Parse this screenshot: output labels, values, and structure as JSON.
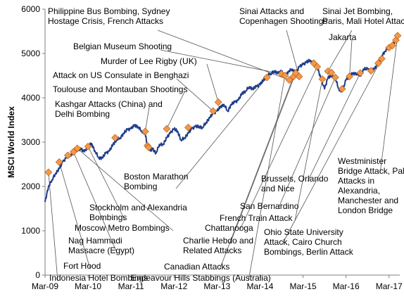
{
  "chart_data": {
    "type": "line",
    "ylabel": "MSCI World Index",
    "xlabel": "",
    "ylim": [
      0,
      6000
    ],
    "yticks": [
      0,
      1000,
      2000,
      3000,
      4000,
      5000,
      6000
    ],
    "xlim": [
      2009.17,
      2017.42
    ],
    "xticks": [
      {
        "label": "Mar-09",
        "x": 2009.17
      },
      {
        "label": "Mar-10",
        "x": 2010.17
      },
      {
        "label": "Mar-11",
        "x": 2011.17
      },
      {
        "label": "Mar-12",
        "x": 2012.17
      },
      {
        "label": "Mar-13",
        "x": 2013.17
      },
      {
        "label": "Mar-14",
        "x": 2014.17
      },
      {
        "label": "Mar-15",
        "x": 2015.17
      },
      {
        "label": "Mar-16",
        "x": 2016.17
      },
      {
        "label": "Mar-17",
        "x": 2017.17
      }
    ],
    "grid": false,
    "colors": {
      "line": "#1f3d8a",
      "marker": "#f79646",
      "marker_edge": "#a65a17",
      "leader": "#555555",
      "axis": "#7f7f7f"
    },
    "series": [
      {
        "values": [
          [
            2009.17,
            1650
          ],
          [
            2009.25,
            2000
          ],
          [
            2009.33,
            2150
          ],
          [
            2009.42,
            2300
          ],
          [
            2009.5,
            2400
          ],
          [
            2009.58,
            2550
          ],
          [
            2009.67,
            2650
          ],
          [
            2009.75,
            2700
          ],
          [
            2009.83,
            2760
          ],
          [
            2009.92,
            2830
          ],
          [
            2010.0,
            2850
          ],
          [
            2010.08,
            2780
          ],
          [
            2010.17,
            2900
          ],
          [
            2010.25,
            2970
          ],
          [
            2010.33,
            2800
          ],
          [
            2010.42,
            2650
          ],
          [
            2010.5,
            2640
          ],
          [
            2010.58,
            2750
          ],
          [
            2010.67,
            2800
          ],
          [
            2010.75,
            2950
          ],
          [
            2010.83,
            3050
          ],
          [
            2010.92,
            3100
          ],
          [
            2011.0,
            3200
          ],
          [
            2011.08,
            3280
          ],
          [
            2011.17,
            3300
          ],
          [
            2011.25,
            3380
          ],
          [
            2011.33,
            3350
          ],
          [
            2011.42,
            3250
          ],
          [
            2011.5,
            3200
          ],
          [
            2011.55,
            2900
          ],
          [
            2011.62,
            2800
          ],
          [
            2011.67,
            2850
          ],
          [
            2011.75,
            2750
          ],
          [
            2011.83,
            2950
          ],
          [
            2011.92,
            2950
          ],
          [
            2012.0,
            3100
          ],
          [
            2012.08,
            3200
          ],
          [
            2012.17,
            3300
          ],
          [
            2012.25,
            3250
          ],
          [
            2012.33,
            3050
          ],
          [
            2012.42,
            3100
          ],
          [
            2012.5,
            3200
          ],
          [
            2012.58,
            3300
          ],
          [
            2012.67,
            3350
          ],
          [
            2012.75,
            3350
          ],
          [
            2012.83,
            3330
          ],
          [
            2012.92,
            3450
          ],
          [
            2013.0,
            3550
          ],
          [
            2013.08,
            3650
          ],
          [
            2013.17,
            3700
          ],
          [
            2013.25,
            3800
          ],
          [
            2013.33,
            3850
          ],
          [
            2013.42,
            3700
          ],
          [
            2013.5,
            3850
          ],
          [
            2013.58,
            3900
          ],
          [
            2013.67,
            3950
          ],
          [
            2013.75,
            4100
          ],
          [
            2013.83,
            4150
          ],
          [
            2013.92,
            4250
          ],
          [
            2014.0,
            4200
          ],
          [
            2014.08,
            4250
          ],
          [
            2014.17,
            4300
          ],
          [
            2014.25,
            4400
          ],
          [
            2014.33,
            4500
          ],
          [
            2014.42,
            4550
          ],
          [
            2014.5,
            4600
          ],
          [
            2014.58,
            4550
          ],
          [
            2014.67,
            4600
          ],
          [
            2014.75,
            4450
          ],
          [
            2014.83,
            4600
          ],
          [
            2014.92,
            4650
          ],
          [
            2015.0,
            4550
          ],
          [
            2015.08,
            4700
          ],
          [
            2015.17,
            4750
          ],
          [
            2015.25,
            4800
          ],
          [
            2015.33,
            4850
          ],
          [
            2015.42,
            4750
          ],
          [
            2015.5,
            4700
          ],
          [
            2015.58,
            4450
          ],
          [
            2015.67,
            4200
          ],
          [
            2015.75,
            4450
          ],
          [
            2015.83,
            4500
          ],
          [
            2015.92,
            4450
          ],
          [
            2016.0,
            4200
          ],
          [
            2016.08,
            4150
          ],
          [
            2016.17,
            4400
          ],
          [
            2016.25,
            4500
          ],
          [
            2016.33,
            4550
          ],
          [
            2016.42,
            4550
          ],
          [
            2016.5,
            4500
          ],
          [
            2016.58,
            4650
          ],
          [
            2016.67,
            4650
          ],
          [
            2016.75,
            4600
          ],
          [
            2016.83,
            4650
          ],
          [
            2016.92,
            4800
          ],
          [
            2017.0,
            4950
          ],
          [
            2017.08,
            5050
          ],
          [
            2017.17,
            5150
          ],
          [
            2017.25,
            5200
          ],
          [
            2017.33,
            5300
          ],
          [
            2017.38,
            5450
          ]
        ]
      }
    ],
    "events": [
      {
        "x": 2009.25,
        "y": 2320
      },
      {
        "x": 2009.5,
        "y": 2550
      },
      {
        "x": 2009.7,
        "y": 2700
      },
      {
        "x": 2009.83,
        "y": 2780
      },
      {
        "x": 2009.92,
        "y": 2860
      },
      {
        "x": 2010.17,
        "y": 2900
      },
      {
        "x": 2010.8,
        "y": 3100
      },
      {
        "x": 2011.5,
        "y": 3240
      },
      {
        "x": 2011.55,
        "y": 2920
      },
      {
        "x": 2011.58,
        "y": 2880
      },
      {
        "x": 2012.0,
        "y": 3300
      },
      {
        "x": 2012.5,
        "y": 3330
      },
      {
        "x": 2013.08,
        "y": 3700
      },
      {
        "x": 2013.2,
        "y": 3900
      },
      {
        "x": 2014.33,
        "y": 4460
      },
      {
        "x": 2014.67,
        "y": 4540
      },
      {
        "x": 2014.75,
        "y": 4500
      },
      {
        "x": 2014.85,
        "y": 4400
      },
      {
        "x": 2014.95,
        "y": 4480
      },
      {
        "x": 2015.0,
        "y": 4560
      },
      {
        "x": 2015.08,
        "y": 4480
      },
      {
        "x": 2015.42,
        "y": 4780
      },
      {
        "x": 2015.5,
        "y": 4700
      },
      {
        "x": 2015.62,
        "y": 4420
      },
      {
        "x": 2015.75,
        "y": 4600
      },
      {
        "x": 2015.83,
        "y": 4570
      },
      {
        "x": 2015.92,
        "y": 4460
      },
      {
        "x": 2016.08,
        "y": 4200
      },
      {
        "x": 2016.25,
        "y": 4480
      },
      {
        "x": 2016.5,
        "y": 4560
      },
      {
        "x": 2016.75,
        "y": 4610
      },
      {
        "x": 2016.92,
        "y": 4780
      },
      {
        "x": 2017.0,
        "y": 4880
      },
      {
        "x": 2017.17,
        "y": 5130
      },
      {
        "x": 2017.25,
        "y": 5180
      },
      {
        "x": 2017.33,
        "y": 5300
      },
      {
        "x": 2017.37,
        "y": 5400
      }
    ],
    "annotations": [
      {
        "lines": [
          "Philippine Bus Bombing, Sydney",
          "Hostage Crisis, French Attacks"
        ],
        "target": 17
      },
      {
        "lines": [
          "Sinai Attacks and",
          "Copenhagen Shootings"
        ],
        "target": 20
      },
      {
        "lines": [
          "Sinai Jet Bombing,",
          "Paris, Mali Hotel Attack"
        ],
        "target": 24
      },
      {
        "lines": [
          "Jakarta"
        ],
        "target": 28
      },
      {
        "lines": [
          "Belgian Museum Shooting"
        ],
        "target": 15
      },
      {
        "lines": [
          "Murder of Lee Rigby (UK)"
        ],
        "target": 13
      },
      {
        "lines": [
          "Attack on US Consulate in Benghazi"
        ],
        "target": 12
      },
      {
        "lines": [
          "Toulouse and Montauban Shootings"
        ],
        "target": 10
      },
      {
        "lines": [
          "Kashgar Attacks (China) and",
          "Delhi Bombing"
        ],
        "target": 7
      },
      {
        "lines": [
          "Boston Marathon",
          "Bombing"
        ],
        "target": 14
      },
      {
        "lines": [
          "Stockholm and Alexandria",
          "Bombings"
        ],
        "target": 5
      },
      {
        "lines": [
          "Moscow Metro Bombings"
        ],
        "target": 4
      },
      {
        "lines": [
          "Nag Hammadi",
          "Massacre (Egypt)"
        ],
        "target": 3
      },
      {
        "lines": [
          "Fort Hood"
        ],
        "target": 1
      },
      {
        "lines": [
          "Indonesia Hotel Bombings"
        ],
        "target": 0
      },
      {
        "lines": [
          "Endeavour Hills Stabbings (Australia)"
        ],
        "target": 16
      },
      {
        "lines": [
          "Canadian Attacks"
        ],
        "target": 18
      },
      {
        "lines": [
          "Charlie Hebdo and",
          "Related Attacks"
        ],
        "target": 19
      },
      {
        "lines": [
          "Chattanooga"
        ],
        "target": 22
      },
      {
        "lines": [
          "French Train Attack"
        ],
        "target": 23
      },
      {
        "lines": [
          "San Bernardino"
        ],
        "target": 26
      },
      {
        "lines": [
          "Brussels, Orlando",
          "and Nice"
        ],
        "target": 29
      },
      {
        "lines": [
          "Ohio State University",
          "Attack, Cairo Church",
          "Bombings, Berlin Attack"
        ],
        "target": 32
      },
      {
        "lines": [
          "Westminister",
          "Bridge Attack, Palm Sunday",
          "Attacks in",
          "Alexandria,",
          "Manchester and",
          "London Bridge"
        ],
        "target": 36
      }
    ]
  }
}
